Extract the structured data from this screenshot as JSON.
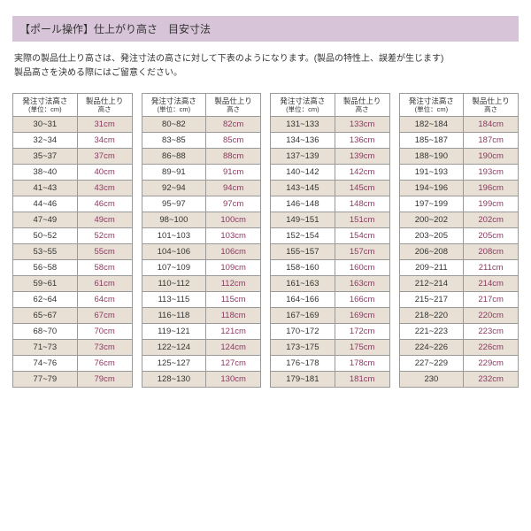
{
  "title": "【ポール操作】仕上がり高さ　目安寸法",
  "desc_line1": "実際の製品仕上り高さは、発注寸法の高さに対して下表のようになります。(製品の特性上、誤差が生じます)",
  "desc_line2": "製品高さを決める際にはご留意ください。",
  "header_col1_line1": "発注寸法高さ",
  "header_col1_line2": "(単位：cm)",
  "header_col2_line1": "製品仕上り",
  "header_col2_line2": "高さ",
  "tables": [
    {
      "rows": [
        [
          "30~31",
          "31cm"
        ],
        [
          "32~34",
          "34cm"
        ],
        [
          "35~37",
          "37cm"
        ],
        [
          "38~40",
          "40cm"
        ],
        [
          "41~43",
          "43cm"
        ],
        [
          "44~46",
          "46cm"
        ],
        [
          "47~49",
          "49cm"
        ],
        [
          "50~52",
          "52cm"
        ],
        [
          "53~55",
          "55cm"
        ],
        [
          "56~58",
          "58cm"
        ],
        [
          "59~61",
          "61cm"
        ],
        [
          "62~64",
          "64cm"
        ],
        [
          "65~67",
          "67cm"
        ],
        [
          "68~70",
          "70cm"
        ],
        [
          "71~73",
          "73cm"
        ],
        [
          "74~76",
          "76cm"
        ],
        [
          "77~79",
          "79cm"
        ]
      ]
    },
    {
      "rows": [
        [
          "80~82",
          "82cm"
        ],
        [
          "83~85",
          "85cm"
        ],
        [
          "86~88",
          "88cm"
        ],
        [
          "89~91",
          "91cm"
        ],
        [
          "92~94",
          "94cm"
        ],
        [
          "95~97",
          "97cm"
        ],
        [
          "98~100",
          "100cm"
        ],
        [
          "101~103",
          "103cm"
        ],
        [
          "104~106",
          "106cm"
        ],
        [
          "107~109",
          "109cm"
        ],
        [
          "110~112",
          "112cm"
        ],
        [
          "113~115",
          "115cm"
        ],
        [
          "116~118",
          "118cm"
        ],
        [
          "119~121",
          "121cm"
        ],
        [
          "122~124",
          "124cm"
        ],
        [
          "125~127",
          "127cm"
        ],
        [
          "128~130",
          "130cm"
        ]
      ]
    },
    {
      "rows": [
        [
          "131~133",
          "133cm"
        ],
        [
          "134~136",
          "136cm"
        ],
        [
          "137~139",
          "139cm"
        ],
        [
          "140~142",
          "142cm"
        ],
        [
          "143~145",
          "145cm"
        ],
        [
          "146~148",
          "148cm"
        ],
        [
          "149~151",
          "151cm"
        ],
        [
          "152~154",
          "154cm"
        ],
        [
          "155~157",
          "157cm"
        ],
        [
          "158~160",
          "160cm"
        ],
        [
          "161~163",
          "163cm"
        ],
        [
          "164~166",
          "166cm"
        ],
        [
          "167~169",
          "169cm"
        ],
        [
          "170~172",
          "172cm"
        ],
        [
          "173~175",
          "175cm"
        ],
        [
          "176~178",
          "178cm"
        ],
        [
          "179~181",
          "181cm"
        ]
      ]
    },
    {
      "rows": [
        [
          "182~184",
          "184cm"
        ],
        [
          "185~187",
          "187cm"
        ],
        [
          "188~190",
          "190cm"
        ],
        [
          "191~193",
          "193cm"
        ],
        [
          "194~196",
          "196cm"
        ],
        [
          "197~199",
          "199cm"
        ],
        [
          "200~202",
          "202cm"
        ],
        [
          "203~205",
          "205cm"
        ],
        [
          "206~208",
          "208cm"
        ],
        [
          "209~211",
          "211cm"
        ],
        [
          "212~214",
          "214cm"
        ],
        [
          "215~217",
          "217cm"
        ],
        [
          "218~220",
          "220cm"
        ],
        [
          "221~223",
          "223cm"
        ],
        [
          "224~226",
          "226cm"
        ],
        [
          "227~229",
          "229cm"
        ],
        [
          "230",
          "232cm"
        ]
      ]
    }
  ]
}
